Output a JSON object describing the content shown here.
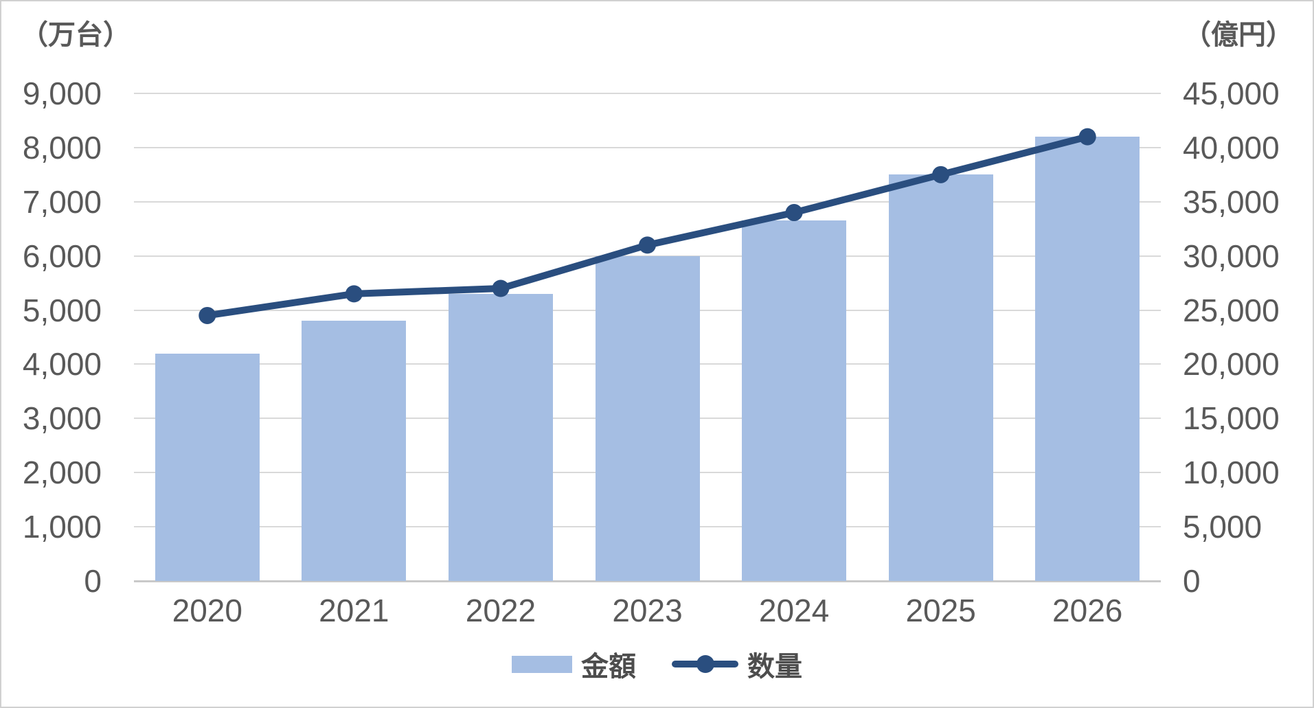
{
  "chart": {
    "left_axis_title": "（万台）",
    "right_axis_title": "（億円）",
    "legend": {
      "bar_label": "金額",
      "line_label": "数量"
    }
  },
  "chart_data": {
    "type": "combo-bar-line",
    "categories": [
      "2020",
      "2021",
      "2022",
      "2023",
      "2024",
      "2025",
      "2026"
    ],
    "series": [
      {
        "name": "金額",
        "type": "bar",
        "axis": "right",
        "unit": "億円",
        "values": [
          21000,
          24000,
          26500,
          30000,
          33300,
          37500,
          41000
        ]
      },
      {
        "name": "数量",
        "type": "line",
        "axis": "left",
        "unit": "万台",
        "values": [
          4900,
          5300,
          5400,
          6200,
          6800,
          7500,
          8200
        ]
      }
    ],
    "left_axis": {
      "title": "（万台）",
      "min": 0,
      "max": 9000,
      "step": 1000
    },
    "right_axis": {
      "title": "（億円）",
      "min": 0,
      "max": 45000,
      "step": 5000
    },
    "grid": true,
    "legend_position": "bottom"
  },
  "colors": {
    "bar_fill": "#a5bee3",
    "line": "#2a4e7f",
    "gridline": "#d9d9d9",
    "axis_line": "#c9c9c9",
    "text": "#595959",
    "canvas_border": "#d0d0d0"
  }
}
